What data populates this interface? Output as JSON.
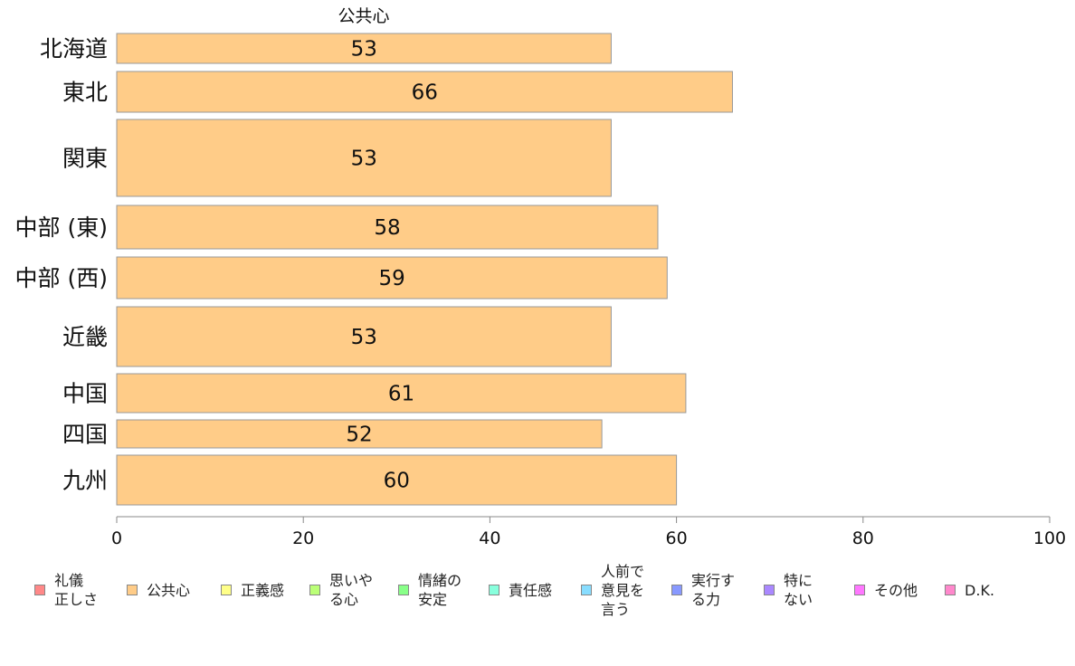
{
  "chart_data": {
    "type": "bar",
    "orientation": "horizontal",
    "title": "公共心",
    "categories": [
      "北海道",
      "東北",
      "関東",
      "中部 (東)",
      "中部 (西)",
      "近畿",
      "中国",
      "四国",
      "九州"
    ],
    "values": [
      53,
      66,
      53,
      58,
      59,
      53,
      61,
      52,
      60
    ],
    "data_labels": [
      "53",
      "66",
      "53",
      "58",
      "59",
      "53",
      "61",
      "52",
      "60"
    ],
    "xlim": [
      0,
      100
    ],
    "x_ticks": [
      "0",
      "20",
      "40",
      "60",
      "80",
      "100"
    ],
    "x_tick_values": [
      0,
      20,
      40,
      60,
      80,
      100
    ],
    "bar_color": "#FFCC88",
    "bar_border_color": "#999999",
    "grid": false,
    "legend_position": "bottom",
    "legend": [
      {
        "label": "礼儀\n正しさ",
        "color": "#FF8888"
      },
      {
        "label": "公共心",
        "color": "#FFCC88"
      },
      {
        "label": "正義感",
        "color": "#FFFF88"
      },
      {
        "label": "思いや\nる心",
        "color": "#BBFF77"
      },
      {
        "label": "情緒の\n安定",
        "color": "#88FF88"
      },
      {
        "label": "責任感",
        "color": "#88FFDD"
      },
      {
        "label": "人前で\n意見を\n言う",
        "color": "#88DDFF"
      },
      {
        "label": "実行す\nる力",
        "color": "#8899FF"
      },
      {
        "label": "特に\nない",
        "color": "#AA88FF"
      },
      {
        "label": "その他",
        "color": "#FF77FF"
      },
      {
        "label": "D.K.",
        "color": "#FF88CC"
      }
    ]
  }
}
